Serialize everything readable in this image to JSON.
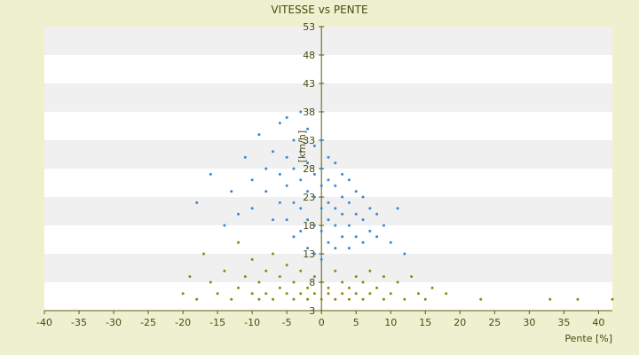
{
  "chart_data": {
    "type": "scatter",
    "title": "VITESSE vs PENTE",
    "xlabel": "Pente [%]",
    "ylabel": "[km/h]",
    "xlim": [
      -40,
      42
    ],
    "ylim": [
      3,
      53
    ],
    "x_ticks": [
      "-40",
      "-35",
      "-30",
      "-25",
      "-20",
      "-15",
      "-10",
      "-5",
      "0",
      "5",
      "10",
      "15",
      "20",
      "25",
      "30",
      "35",
      "40"
    ],
    "y_ticks": [
      "3",
      "8",
      "13",
      "18",
      "23",
      "28",
      "33",
      "38",
      "43",
      "48",
      "53"
    ],
    "grid": "alternating horizontal bands",
    "series_colors": [
      "#3a87d4",
      "#8a8a10"
    ],
    "series": [
      {
        "points": [
          [
            -18,
            22
          ],
          [
            -16,
            27
          ],
          [
            -14,
            18
          ],
          [
            -13,
            24
          ],
          [
            -12,
            20
          ],
          [
            -11,
            30
          ],
          [
            -10,
            26
          ],
          [
            -10,
            21
          ],
          [
            -9,
            34
          ],
          [
            -8,
            28
          ],
          [
            -8,
            24
          ],
          [
            -7,
            31
          ],
          [
            -7,
            19
          ],
          [
            -6,
            36
          ],
          [
            -6,
            27
          ],
          [
            -6,
            22
          ],
          [
            -5,
            37
          ],
          [
            -5,
            30
          ],
          [
            -5,
            25
          ],
          [
            -5,
            19
          ],
          [
            -4,
            33
          ],
          [
            -4,
            28
          ],
          [
            -4,
            22
          ],
          [
            -4,
            16
          ],
          [
            -3,
            38
          ],
          [
            -3,
            31
          ],
          [
            -3,
            26
          ],
          [
            -3,
            21
          ],
          [
            -3,
            17
          ],
          [
            -2,
            35
          ],
          [
            -2,
            29
          ],
          [
            -2,
            24
          ],
          [
            -2,
            19
          ],
          [
            -2,
            14
          ],
          [
            -1,
            32
          ],
          [
            -1,
            27
          ],
          [
            -1,
            23
          ],
          [
            -1,
            18
          ],
          [
            -1,
            13
          ],
          [
            0,
            33
          ],
          [
            0,
            28
          ],
          [
            0,
            25
          ],
          [
            0,
            21
          ],
          [
            0,
            17
          ],
          [
            0,
            12
          ],
          [
            1,
            30
          ],
          [
            1,
            26
          ],
          [
            1,
            22
          ],
          [
            1,
            19
          ],
          [
            1,
            15
          ],
          [
            2,
            29
          ],
          [
            2,
            25
          ],
          [
            2,
            21
          ],
          [
            2,
            18
          ],
          [
            2,
            14
          ],
          [
            3,
            27
          ],
          [
            3,
            23
          ],
          [
            3,
            20
          ],
          [
            3,
            16
          ],
          [
            4,
            26
          ],
          [
            4,
            22
          ],
          [
            4,
            18
          ],
          [
            4,
            14
          ],
          [
            5,
            24
          ],
          [
            5,
            20
          ],
          [
            5,
            16
          ],
          [
            6,
            23
          ],
          [
            6,
            19
          ],
          [
            6,
            15
          ],
          [
            7,
            21
          ],
          [
            7,
            17
          ],
          [
            8,
            20
          ],
          [
            8,
            16
          ],
          [
            9,
            18
          ],
          [
            10,
            15
          ],
          [
            11,
            21
          ],
          [
            12,
            13
          ]
        ]
      },
      {
        "points": [
          [
            -20,
            6
          ],
          [
            -19,
            9
          ],
          [
            -18,
            5
          ],
          [
            -17,
            13
          ],
          [
            -16,
            8
          ],
          [
            -15,
            6
          ],
          [
            -14,
            10
          ],
          [
            -13,
            5
          ],
          [
            -12,
            15
          ],
          [
            -12,
            7
          ],
          [
            -11,
            9
          ],
          [
            -10,
            6
          ],
          [
            -10,
            12
          ],
          [
            -9,
            5
          ],
          [
            -9,
            8
          ],
          [
            -8,
            10
          ],
          [
            -8,
            6
          ],
          [
            -7,
            13
          ],
          [
            -7,
            5
          ],
          [
            -6,
            9
          ],
          [
            -6,
            7
          ],
          [
            -5,
            11
          ],
          [
            -5,
            6
          ],
          [
            -4,
            8
          ],
          [
            -4,
            5
          ],
          [
            -3,
            10
          ],
          [
            -3,
            6
          ],
          [
            -2,
            7
          ],
          [
            -2,
            5
          ],
          [
            -1,
            9
          ],
          [
            -1,
            6
          ],
          [
            0,
            8
          ],
          [
            0,
            5
          ],
          [
            1,
            7
          ],
          [
            1,
            6
          ],
          [
            2,
            10
          ],
          [
            2,
            5
          ],
          [
            3,
            8
          ],
          [
            3,
            6
          ],
          [
            4,
            7
          ],
          [
            4,
            5
          ],
          [
            5,
            9
          ],
          [
            5,
            6
          ],
          [
            6,
            8
          ],
          [
            6,
            5
          ],
          [
            7,
            10
          ],
          [
            7,
            6
          ],
          [
            8,
            7
          ],
          [
            9,
            9
          ],
          [
            9,
            5
          ],
          [
            10,
            6
          ],
          [
            11,
            8
          ],
          [
            12,
            5
          ],
          [
            13,
            9
          ],
          [
            14,
            6
          ],
          [
            15,
            5
          ],
          [
            16,
            7
          ],
          [
            18,
            6
          ],
          [
            23,
            5
          ],
          [
            33,
            5
          ],
          [
            37,
            5
          ],
          [
            42,
            5
          ]
        ]
      }
    ]
  }
}
